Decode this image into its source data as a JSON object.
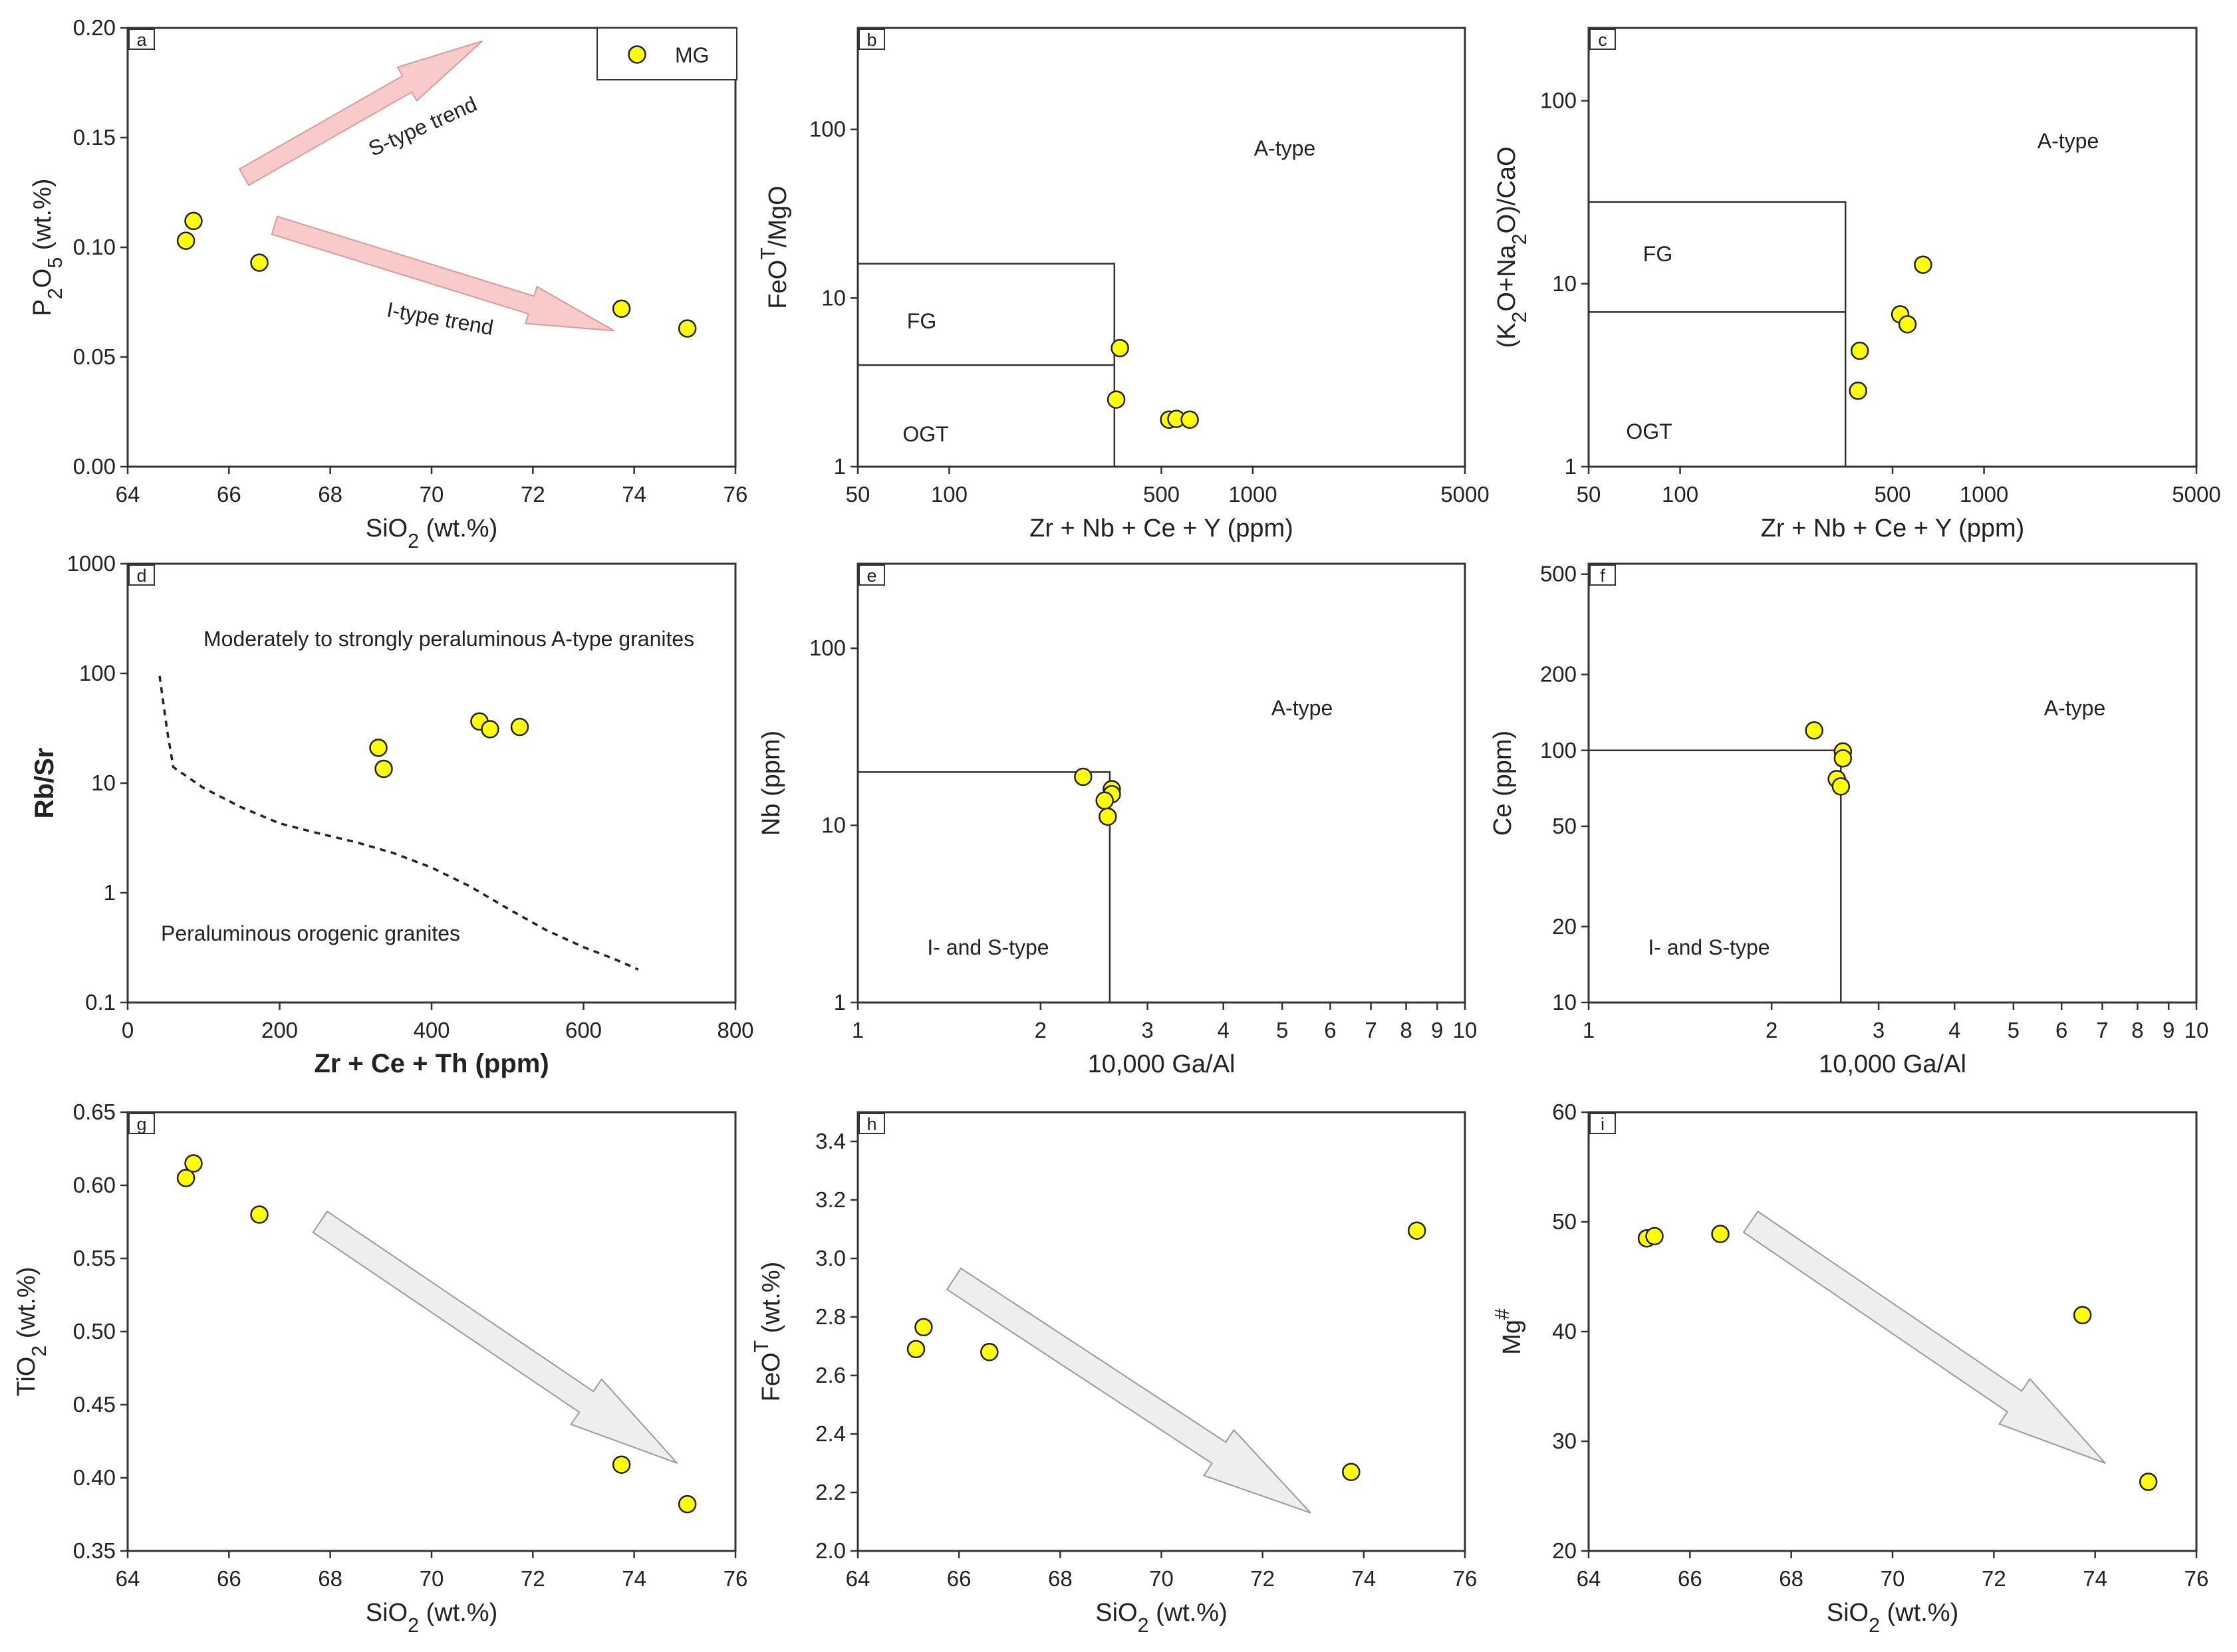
{
  "colors": {
    "point_fill": "#ffff00",
    "point_stroke": "#222222",
    "frame": "#333333",
    "pink_arrow": "#f9caca",
    "pink_arrow_stroke": "#d89a9a",
    "gray_arrow": "#eeeeee",
    "gray_arrow_stroke": "#9a9a9a"
  },
  "chart_data": [
    {
      "panel": "a",
      "type": "scatter",
      "xlabel": "SiO₂ (wt.%)",
      "ylabel": "P₂O₅ (wt.%)",
      "xscale": "linear",
      "yscale": "linear",
      "xlim": [
        64,
        76
      ],
      "ylim": [
        0.0,
        0.2
      ],
      "xticks": [
        64,
        66,
        68,
        70,
        72,
        74,
        76
      ],
      "xtick_labels": [
        "64",
        "66",
        "68",
        "70",
        "72",
        "74",
        "76"
      ],
      "yticks": [
        0,
        0.05,
        0.1,
        0.15,
        0.2
      ],
      "ytick_labels": [
        "0.00",
        "0.05",
        "0.10",
        "0.15",
        "0.20"
      ],
      "series": [
        {
          "name": "MG",
          "x": [
            65.15,
            65.3,
            66.6,
            73.75,
            75.05
          ],
          "y": [
            0.103,
            0.112,
            0.093,
            0.072,
            0.063
          ]
        }
      ],
      "legend": {
        "label": "MG",
        "position": "top-right"
      },
      "annotations": [
        {
          "text": "S-type trend"
        },
        {
          "text": "I-type trend"
        }
      ],
      "trend_arrows": [
        {
          "from": [
            66.3,
            0.132
          ],
          "to": [
            71.0,
            0.194
          ],
          "style": "pink"
        },
        {
          "from": [
            66.9,
            0.11
          ],
          "to": [
            73.6,
            0.062
          ],
          "style": "pink"
        }
      ]
    },
    {
      "panel": "b",
      "type": "scatter",
      "xlabel": "Zr + Nb + Ce + Y (ppm)",
      "ylabel": "FeOᵀ/MgO",
      "xscale": "log",
      "yscale": "log",
      "xlim": [
        50,
        5000
      ],
      "ylim": [
        1,
        400
      ],
      "xticks": [
        50,
        100,
        500,
        1000,
        5000
      ],
      "xtick_labels": [
        "50",
        "100",
        "500",
        "1000",
        "5000"
      ],
      "yticks": [
        1,
        10,
        100
      ],
      "ytick_labels": [
        "1",
        "10",
        "100"
      ],
      "series": [
        {
          "name": "MG",
          "x": [
            365,
            355,
            530,
            560,
            620
          ],
          "y": [
            5.05,
            2.5,
            1.9,
            1.92,
            1.9
          ]
        }
      ],
      "fields": [
        {
          "label": "A-type"
        },
        {
          "label": "FG"
        },
        {
          "label": "OGT"
        }
      ],
      "field_boundaries": [
        {
          "x": [
            50,
            350,
            350
          ],
          "y": [
            16,
            16,
            1
          ]
        },
        {
          "x": [
            50,
            350
          ],
          "y": [
            4,
            4
          ]
        }
      ]
    },
    {
      "panel": "c",
      "type": "scatter",
      "xlabel": "Zr + Nb + Ce + Y (ppm)",
      "ylabel": "(K₂O+Na₂O)/CaO",
      "xscale": "log",
      "yscale": "log",
      "xlim": [
        50,
        5000
      ],
      "ylim": [
        1,
        250
      ],
      "xticks": [
        50,
        100,
        500,
        1000,
        5000
      ],
      "xtick_labels": [
        "50",
        "100",
        "500",
        "1000",
        "5000"
      ],
      "yticks": [
        1,
        10,
        100
      ],
      "ytick_labels": [
        "1",
        "10",
        "100"
      ],
      "series": [
        {
          "name": "MG",
          "x": [
            390,
            385,
            530,
            560,
            630
          ],
          "y": [
            4.3,
            2.6,
            6.8,
            6.0,
            12.7
          ]
        }
      ],
      "fields": [
        {
          "label": "A-type"
        },
        {
          "label": "FG"
        },
        {
          "label": "OGT"
        }
      ],
      "field_boundaries": [
        {
          "x": [
            50,
            350,
            350
          ],
          "y": [
            28,
            28,
            1
          ]
        },
        {
          "x": [
            50,
            350
          ],
          "y": [
            7,
            7
          ]
        }
      ]
    },
    {
      "panel": "d",
      "type": "scatter",
      "xlabel": "Zr + Ce + Th (ppm)",
      "ylabel": "Rb/Sr",
      "xscale": "linear",
      "yscale": "log",
      "xlim": [
        0,
        800
      ],
      "ylim": [
        0.1,
        1000
      ],
      "xticks": [
        0,
        200,
        400,
        600,
        800
      ],
      "xtick_labels": [
        "0",
        "200",
        "400",
        "600",
        "800"
      ],
      "yticks": [
        0.1,
        1,
        10,
        100,
        1000
      ],
      "ytick_labels": [
        "0.1",
        "1",
        "10",
        "100",
        "1000"
      ],
      "series": [
        {
          "name": "MG",
          "x": [
            330,
            337,
            463,
            477,
            516
          ],
          "y": [
            21,
            13.5,
            36.5,
            31,
            32.5
          ]
        }
      ],
      "fields": [
        {
          "label": "Moderately to strongly peraluminous A-type granites"
        },
        {
          "label": "Peraluminous orogenic granites"
        }
      ],
      "dashed_boundary": {
        "x": [
          42,
          52,
          60,
          100,
          150,
          200,
          250,
          300,
          350,
          400,
          450,
          500,
          550,
          600,
          640,
          672
        ],
        "y": [
          95,
          30,
          14,
          9,
          6,
          4.3,
          3.5,
          2.9,
          2.3,
          1.7,
          1.15,
          0.72,
          0.46,
          0.32,
          0.25,
          0.2
        ]
      }
    },
    {
      "panel": "e",
      "type": "scatter",
      "xlabel": "10,000 Ga/Al",
      "ylabel": "Nb (ppm)",
      "xscale": "log",
      "yscale": "log",
      "xlim": [
        1,
        10
      ],
      "ylim": [
        1,
        300
      ],
      "xticks": [
        1,
        2,
        3,
        4,
        5,
        6,
        7,
        8,
        9,
        10
      ],
      "xtick_labels": [
        "1",
        "2",
        "3",
        "4",
        "5",
        "6",
        "7",
        "8",
        "9",
        "10"
      ],
      "yticks": [
        1,
        10,
        100
      ],
      "ytick_labels": [
        "1",
        "10",
        "100"
      ],
      "series": [
        {
          "name": "MG",
          "x": [
            2.35,
            2.62,
            2.62,
            2.55,
            2.58
          ],
          "y": [
            18.8,
            16,
            15,
            13.8,
            11.2
          ]
        }
      ],
      "fields": [
        {
          "label": "A-type"
        },
        {
          "label": "I- and S-type"
        }
      ],
      "field_boundaries": [
        {
          "x": [
            1,
            2.6,
            2.6
          ],
          "y": [
            20,
            20,
            1
          ]
        }
      ]
    },
    {
      "panel": "f",
      "type": "scatter",
      "xlabel": "10,000 Ga/Al",
      "ylabel": "Ce (ppm)",
      "xscale": "log",
      "yscale": "log",
      "xlim": [
        1,
        10
      ],
      "ylim": [
        10,
        550
      ],
      "xticks": [
        1,
        2,
        3,
        4,
        5,
        6,
        7,
        8,
        9,
        10
      ],
      "xtick_labels": [
        "1",
        "2",
        "3",
        "4",
        "5",
        "6",
        "7",
        "8",
        "9",
        "10"
      ],
      "yticks": [
        10,
        20,
        50,
        100,
        200,
        500
      ],
      "ytick_labels": [
        "10",
        "20",
        "50",
        "100",
        "200",
        "500"
      ],
      "series": [
        {
          "name": "MG",
          "x": [
            2.35,
            2.62,
            2.62,
            2.56,
            2.6
          ],
          "y": [
            120,
            99,
            93,
            77,
            72
          ]
        }
      ],
      "fields": [
        {
          "label": "A-type"
        },
        {
          "label": "I- and S-type"
        }
      ],
      "field_boundaries": [
        {
          "x": [
            1,
            2.6,
            2.6
          ],
          "y": [
            100,
            100,
            10
          ]
        }
      ]
    },
    {
      "panel": "g",
      "type": "scatter",
      "xlabel": "SiO₂ (wt.%)",
      "ylabel": "TiO₂ (wt.%)",
      "xscale": "linear",
      "yscale": "linear",
      "xlim": [
        64,
        76
      ],
      "ylim": [
        0.35,
        0.65
      ],
      "xticks": [
        64,
        66,
        68,
        70,
        72,
        74,
        76
      ],
      "xtick_labels": [
        "64",
        "66",
        "68",
        "70",
        "72",
        "74",
        "76"
      ],
      "yticks": [
        0.35,
        0.4,
        0.45,
        0.5,
        0.55,
        0.6,
        0.65
      ],
      "ytick_labels": [
        "0.35",
        "0.40",
        "0.45",
        "0.50",
        "0.55",
        "0.60",
        "0.65"
      ],
      "series": [
        {
          "name": "MG",
          "x": [
            65.15,
            65.3,
            66.6,
            73.75,
            75.05
          ],
          "y": [
            0.605,
            0.615,
            0.58,
            0.409,
            0.382
          ]
        }
      ],
      "trend_arrows": [
        {
          "from": [
            67.8,
            0.575
          ],
          "to": [
            74.85,
            0.41
          ],
          "style": "gray"
        }
      ]
    },
    {
      "panel": "h",
      "type": "scatter",
      "xlabel": "SiO₂ (wt.%)",
      "ylabel": "FeOᵀ (wt.%)",
      "xscale": "linear",
      "yscale": "linear",
      "xlim": [
        64,
        76
      ],
      "ylim": [
        2.0,
        3.5
      ],
      "xticks": [
        64,
        66,
        68,
        70,
        72,
        74,
        76
      ],
      "xtick_labels": [
        "64",
        "66",
        "68",
        "70",
        "72",
        "74",
        "76"
      ],
      "yticks": [
        2.0,
        2.2,
        2.4,
        2.6,
        2.8,
        3.0,
        3.2,
        3.4
      ],
      "ytick_labels": [
        "2.0",
        "2.2",
        "2.4",
        "2.6",
        "2.8",
        "3.0",
        "3.2",
        "3.4"
      ],
      "series": [
        {
          "name": "MG",
          "x": [
            65.15,
            65.3,
            66.6,
            73.75,
            75.05
          ],
          "y": [
            2.69,
            2.765,
            2.68,
            2.27,
            3.095
          ]
        }
      ],
      "trend_arrows": [
        {
          "from": [
            65.9,
            2.93
          ],
          "to": [
            72.95,
            2.13
          ],
          "style": "gray"
        }
      ]
    },
    {
      "panel": "i",
      "type": "scatter",
      "xlabel": "SiO₂ (wt.%)",
      "ylabel": "Mg#",
      "xscale": "linear",
      "yscale": "linear",
      "xlim": [
        64,
        76
      ],
      "ylim": [
        20,
        60
      ],
      "xticks": [
        64,
        66,
        68,
        70,
        72,
        74,
        76
      ],
      "xtick_labels": [
        "64",
        "66",
        "68",
        "70",
        "72",
        "74",
        "76"
      ],
      "yticks": [
        20,
        30,
        40,
        50,
        60
      ],
      "ytick_labels": [
        "20",
        "30",
        "40",
        "50",
        "60"
      ],
      "series": [
        {
          "name": "MG",
          "x": [
            65.15,
            65.3,
            66.6,
            73.75,
            75.05
          ],
          "y": [
            48.5,
            48.7,
            48.9,
            41.5,
            26.3
          ]
        }
      ],
      "trend_arrows": [
        {
          "from": [
            67.2,
            50.0
          ],
          "to": [
            74.2,
            28.0
          ],
          "style": "gray"
        }
      ]
    }
  ]
}
